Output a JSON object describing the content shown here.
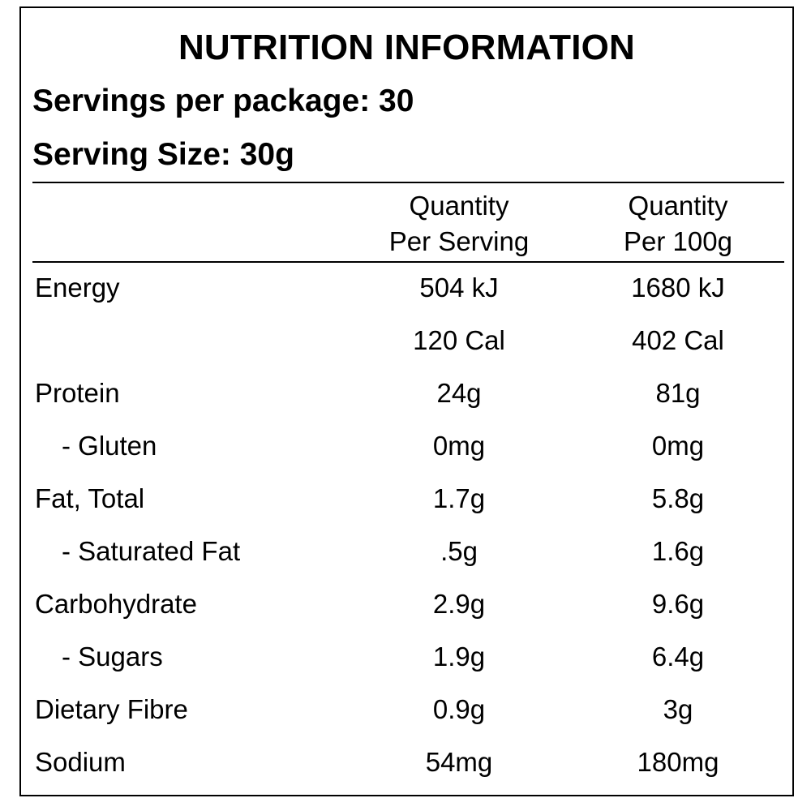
{
  "title": "NUTRITION INFORMATION",
  "servings_per_package": "Servings per package: 30",
  "serving_size": "Serving Size: 30g",
  "columns": {
    "per_serving": [
      "Quantity",
      "Per Serving"
    ],
    "per_100g": [
      "Quantity",
      "Per 100g"
    ]
  },
  "rows": [
    {
      "label": "Energy",
      "per_serving": "504 kJ",
      "per_100g": "1680 kJ",
      "sub": false
    },
    {
      "label": "",
      "per_serving": "120 Cal",
      "per_100g": "402 Cal",
      "sub": false
    },
    {
      "label": "Protein",
      "per_serving": "24g",
      "per_100g": "81g",
      "sub": false
    },
    {
      "label": "- Gluten",
      "per_serving": "0mg",
      "per_100g": "0mg",
      "sub": true
    },
    {
      "label": "Fat, Total",
      "per_serving": "1.7g",
      "per_100g": "5.8g",
      "sub": false
    },
    {
      "label": "- Saturated Fat",
      "per_serving": ".5g",
      "per_100g": "1.6g",
      "sub": true
    },
    {
      "label": "Carbohydrate",
      "per_serving": "2.9g",
      "per_100g": "9.6g",
      "sub": false
    },
    {
      "label": "- Sugars",
      "per_serving": "1.9g",
      "per_100g": "6.4g",
      "sub": true
    },
    {
      "label": "Dietary Fibre",
      "per_serving": "0.9g",
      "per_100g": "3g",
      "sub": false
    },
    {
      "label": "Sodium",
      "per_serving": "54mg",
      "per_100g": "180mg",
      "sub": false
    }
  ]
}
